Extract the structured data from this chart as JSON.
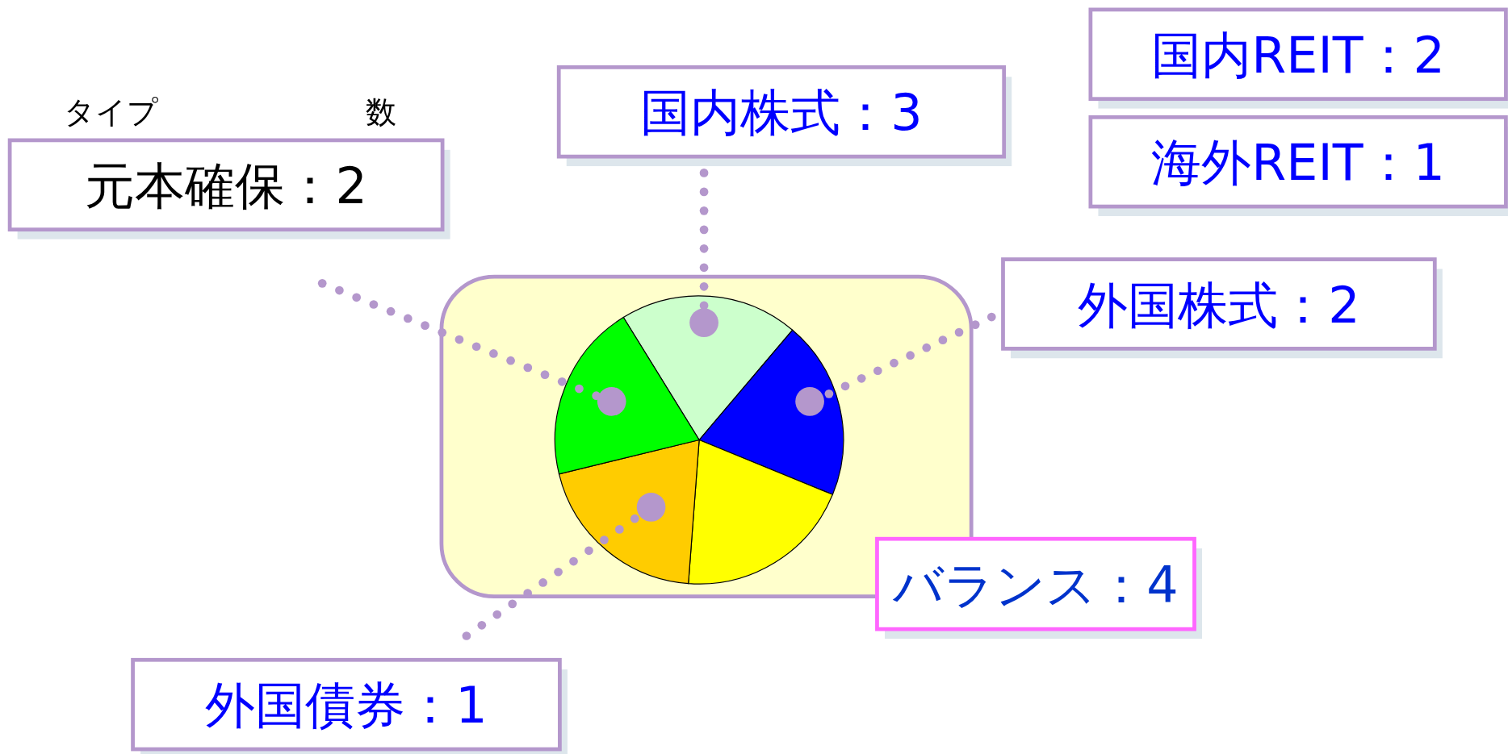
{
  "chart_data": {
    "type": "pie",
    "categories": [
      null,
      null,
      null,
      null,
      null
    ],
    "values": [
      20,
      20,
      20,
      20,
      20
    ],
    "colors": [
      "#ccffcc",
      "#0000ff",
      "#ffff00",
      "#ffcc00",
      "#00ff00"
    ],
    "annotations": [
      "タイプ",
      "数",
      "元本確保：2",
      "国内株式：3",
      "国内REIT：2",
      "海外REIT：1",
      "外国株式：2",
      "バランス：4",
      "外国債券：1"
    ]
  }
}
